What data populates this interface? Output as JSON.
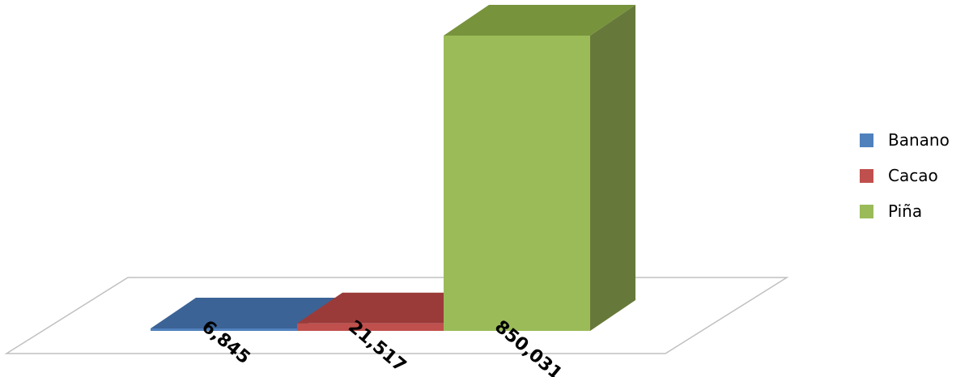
{
  "chart_data": {
    "type": "bar",
    "categories": [
      "Banano",
      "Cacao",
      "Piña"
    ],
    "series": [
      {
        "name": "Banano",
        "value": 6845,
        "label": "6,845",
        "color": "#4f81bd",
        "top_color": "#3c6396",
        "side_color": "#385d8a"
      },
      {
        "name": "Cacao",
        "value": 21517,
        "label": "21,517",
        "color": "#c0504d",
        "top_color": "#9b3b39",
        "side_color": "#8c3836"
      },
      {
        "name": "Piña",
        "value": 850031,
        "label": "850,031",
        "color": "#9bbb59",
        "top_color": "#77933c",
        "side_color": "#67793a"
      }
    ],
    "title": "",
    "xlabel": "",
    "ylabel": "",
    "ylim": [
      0,
      850031
    ],
    "legend_position": "right",
    "grid": false,
    "three_d": true
  },
  "legend": {
    "items": [
      {
        "label": "Banano",
        "color": "#4f81bd"
      },
      {
        "label": "Cacao",
        "color": "#c0504d"
      },
      {
        "label": "Piña",
        "color": "#9bbb59"
      }
    ]
  }
}
